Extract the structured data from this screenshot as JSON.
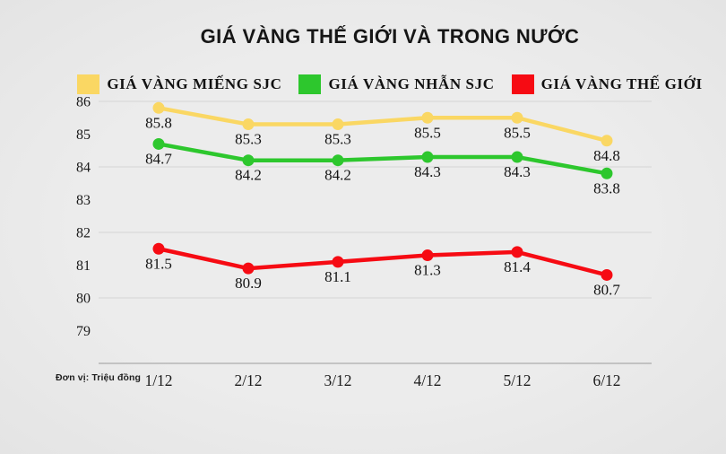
{
  "title": "GIÁ VÀNG THẾ GIỚI VÀ TRONG NƯỚC",
  "unit_note": "Đơn vị: Triệu đồng",
  "colors": {
    "background": "#E9E9E9",
    "grid": "#D5D5D5",
    "axis": "#ABABAB",
    "text": "#1B1B1B",
    "sjc_bar_yellow": "#FAD763",
    "sjc_ring_green": "#2DC72D",
    "world_red": "#F60B13"
  },
  "chart_data": {
    "type": "line",
    "categories": [
      "1/12",
      "2/12",
      "3/12",
      "4/12",
      "5/12",
      "6/12"
    ],
    "series": [
      {
        "name": "GIÁ VÀNG MIẾNG SJC",
        "color": "#FAD763",
        "values": [
          85.8,
          85.3,
          85.3,
          85.5,
          85.5,
          84.8
        ]
      },
      {
        "name": "GIÁ VÀNG NHẪN SJC",
        "color": "#2DC72D",
        "values": [
          84.7,
          84.2,
          84.2,
          84.3,
          84.3,
          83.8
        ]
      },
      {
        "name": "GIÁ VÀNG THẾ GIỚI",
        "color": "#F60B13",
        "values": [
          81.5,
          80.9,
          81.1,
          81.3,
          81.4,
          80.7
        ]
      }
    ],
    "title": "GIÁ VÀNG THẾ GIỚI VÀ TRONG NƯỚC",
    "xlabel": "",
    "ylabel": "Đơn vị: Triệu đồng",
    "ylim": [
      78,
      86
    ],
    "y_ticks": [
      86,
      85,
      84,
      83,
      82,
      81,
      80,
      79
    ],
    "y_gridlines": [
      86,
      84,
      82,
      80
    ],
    "y_baseline": 78,
    "grid": "horizontal-only",
    "legend_position": "top",
    "data_labels": true,
    "marker": "circle"
  }
}
